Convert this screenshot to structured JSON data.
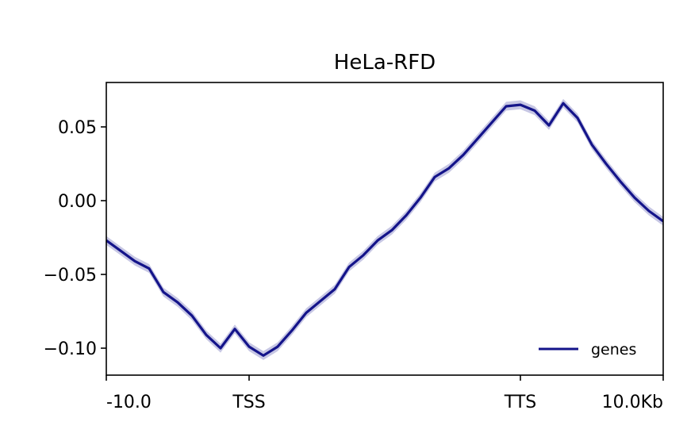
{
  "chart_data": {
    "type": "line",
    "title": "HeLa-RFD",
    "xlabel": "",
    "ylabel": "",
    "x_tick_labels": [
      "-10.0",
      "TSS",
      "TTS",
      "10.0Kb"
    ],
    "x_tick_positions": [
      0,
      10,
      29,
      39
    ],
    "xlim": [
      0,
      39
    ],
    "ylim": [
      -0.12,
      0.08
    ],
    "y_ticks": [
      0.05,
      0.0,
      -0.05,
      -0.1
    ],
    "y_tick_labels": [
      "0.05",
      "0.00",
      "−0.05",
      "−0.10"
    ],
    "legend": {
      "position": "lower-right",
      "entries": [
        "genes"
      ]
    },
    "grid": false,
    "series": [
      {
        "name": "genes",
        "color": "#14148a",
        "band_color": "#b9b9dd",
        "x": [
          0,
          1,
          2,
          3,
          4,
          5,
          6,
          7,
          8,
          9,
          10,
          11,
          12,
          13,
          14,
          15,
          16,
          17,
          18,
          19,
          20,
          21,
          22,
          23,
          24,
          25,
          26,
          27,
          28,
          29,
          30,
          31,
          32,
          33,
          34,
          35,
          36,
          37,
          38,
          39
        ],
        "values": [
          -0.027,
          -0.034,
          -0.041,
          -0.046,
          -0.062,
          -0.069,
          -0.078,
          -0.091,
          -0.1,
          -0.087,
          -0.099,
          -0.105,
          -0.099,
          -0.088,
          -0.076,
          -0.068,
          -0.06,
          -0.045,
          -0.037,
          -0.027,
          -0.02,
          -0.01,
          0.002,
          0.016,
          0.022,
          0.031,
          0.042,
          0.053,
          0.064,
          0.065,
          0.061,
          0.051,
          0.066,
          0.056,
          0.038,
          0.025,
          0.013,
          0.002,
          -0.007,
          -0.014
        ],
        "band_halfwidth": 0.003
      }
    ]
  }
}
